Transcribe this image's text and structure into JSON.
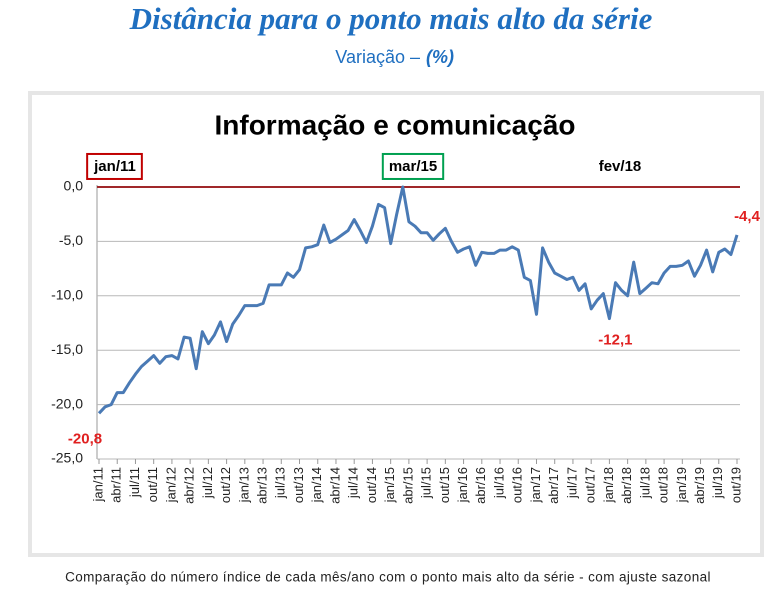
{
  "chart_data": {
    "type": "line",
    "title": "Distância para o ponto mais alto da série",
    "subtitle": "Variação –",
    "subtitle_unit": "(%)",
    "chart_title": "Informação e comunicação",
    "note": "Comparação do número índice de cada mês/ano com o ponto mais alto da série - com ajuste sazonal",
    "markers": [
      {
        "label": "jan/11",
        "color": "#c00000"
      },
      {
        "label": "mar/15",
        "color": "#00a050"
      },
      {
        "label": "fev/18"
      }
    ],
    "reference_color": "#a0282a",
    "categories": [
      "jan/11",
      null,
      null,
      "abr/11",
      null,
      null,
      "jul/11",
      null,
      null,
      "out/11",
      null,
      null,
      "jan/12",
      null,
      null,
      "abr/12",
      null,
      null,
      "jul/12",
      null,
      null,
      "out/12",
      null,
      null,
      "jan/13",
      null,
      null,
      "abr/13",
      null,
      null,
      "jul/13",
      null,
      null,
      "out/13",
      null,
      null,
      "jan/14",
      null,
      null,
      "abr/14",
      null,
      null,
      "jul/14",
      null,
      null,
      "out/14",
      null,
      null,
      "jan/15",
      null,
      null,
      "abr/15",
      null,
      null,
      "jul/15",
      null,
      null,
      "out/15",
      null,
      null,
      "jan/16",
      null,
      null,
      "abr/16",
      null,
      null,
      "jul/16",
      null,
      null,
      "out/16",
      null,
      null,
      "jan/17",
      null,
      null,
      "abr/17",
      null,
      null,
      "jul/17",
      null,
      null,
      "out/17",
      null,
      null,
      "jan/18",
      null,
      null,
      "abr/18",
      null,
      null,
      "jul/18",
      null,
      null,
      "out/18",
      null,
      null,
      "jan/19",
      null,
      null,
      "abr/19",
      null,
      null,
      "jul/19",
      null,
      null,
      "out/19"
    ],
    "values": [
      -20.8,
      -20.2,
      -20.0,
      -18.9,
      -18.9,
      -18.0,
      -17.2,
      -16.5,
      -16.0,
      -15.5,
      -16.2,
      -15.6,
      -15.5,
      -15.8,
      -13.8,
      -13.9,
      -16.7,
      -13.3,
      -14.4,
      -13.6,
      -12.4,
      -14.2,
      -12.6,
      -11.8,
      -10.9,
      -10.9,
      -10.9,
      -10.7,
      -9.0,
      -9.0,
      -9.0,
      -7.9,
      -8.3,
      -7.6,
      -5.6,
      -5.5,
      -5.3,
      -3.5,
      -5.1,
      -4.8,
      -4.4,
      -4.0,
      -3.0,
      -4.0,
      -5.1,
      -3.6,
      -1.6,
      -1.9,
      -5.2,
      -2.5,
      0.0,
      -3.2,
      -3.6,
      -4.2,
      -4.2,
      -4.9,
      -4.3,
      -3.8,
      -5.0,
      -6.0,
      -5.7,
      -5.5,
      -7.2,
      -6.0,
      -6.1,
      -6.1,
      -5.8,
      -5.8,
      -5.5,
      -5.8,
      -8.3,
      -8.6,
      -11.7,
      -5.6,
      -6.9,
      -7.9,
      -8.2,
      -8.5,
      -8.3,
      -9.5,
      -8.9,
      -11.2,
      -10.4,
      -9.8,
      -12.1,
      -8.8,
      -9.5,
      -10.0,
      -6.9,
      -9.8,
      -9.3,
      -8.8,
      -8.9,
      -7.9,
      -7.3,
      -7.3,
      -7.2,
      -6.8,
      -8.2,
      -7.2,
      -5.8,
      -7.8,
      -6.0,
      -5.7,
      -6.2,
      -4.4
    ],
    "value_labels": [
      "-20,8",
      null,
      null,
      null,
      null,
      null,
      null,
      null,
      null,
      null,
      null,
      null,
      null,
      null,
      null,
      null,
      null,
      null,
      null,
      null,
      null,
      null,
      null,
      null,
      null,
      null,
      null,
      null,
      null,
      null,
      null,
      null,
      null,
      null,
      null,
      null,
      null,
      null,
      null,
      null,
      null,
      null,
      null,
      null,
      null,
      null,
      null,
      null,
      null,
      null,
      null,
      null,
      null,
      null,
      null,
      null,
      null,
      null,
      null,
      null,
      null,
      null,
      null,
      null,
      null,
      null,
      null,
      null,
      null,
      null,
      null,
      null,
      null,
      null,
      null,
      null,
      null,
      null,
      null,
      null,
      null,
      null,
      null,
      null,
      "-12,1",
      null,
      null,
      null,
      null,
      null,
      null,
      null,
      null,
      null,
      null,
      null,
      null,
      null,
      null,
      null,
      null,
      null,
      null,
      null,
      null,
      "-4,4"
    ],
    "color": "#4a7ab5",
    "label_color": "#e02020",
    "ylim": [
      -25,
      0
    ],
    "yticks": [
      {
        "value": 0,
        "label": "0,0"
      },
      {
        "value": -5,
        "label": "-5,0"
      },
      {
        "value": -10,
        "label": "-10,0"
      },
      {
        "value": -15,
        "label": "-15,0"
      },
      {
        "value": -20,
        "label": "-20,0"
      },
      {
        "value": -25,
        "label": "-25,0"
      }
    ],
    "grid": true
  }
}
